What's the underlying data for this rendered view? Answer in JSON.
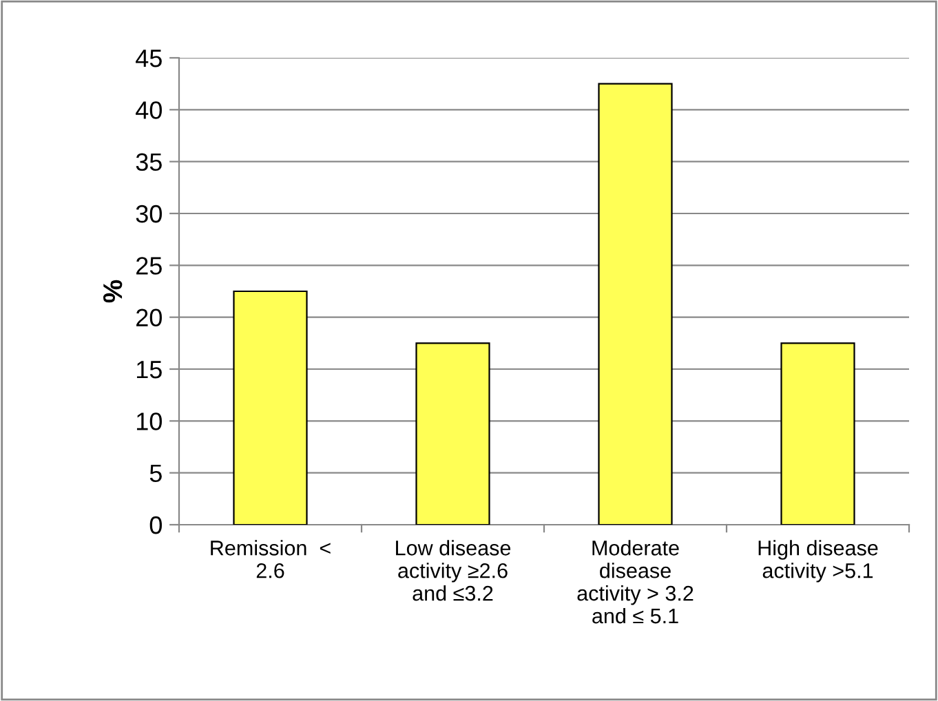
{
  "chart_data": {
    "type": "bar",
    "ylabel": "%",
    "categories": [
      "Remission  <\n2.6",
      "Low disease\nactivity ≥2.6\nand ≤3.2",
      "Moderate\ndisease\nactivity > 3.2\nand ≤ 5.1",
      "High disease\nactivity >5.1"
    ],
    "values": [
      22.5,
      17.5,
      42.5,
      17.5
    ],
    "color": "#ffff55",
    "ylim": [
      0,
      45
    ],
    "yticks": [
      0,
      5,
      10,
      15,
      20,
      25,
      30,
      35,
      40,
      45
    ],
    "grid": "y"
  }
}
